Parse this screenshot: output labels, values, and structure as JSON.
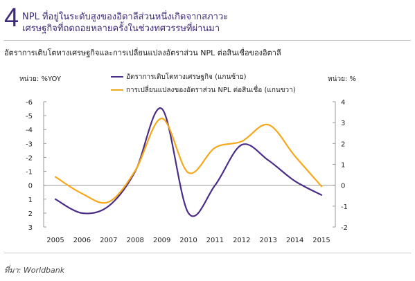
{
  "header": {
    "number": "4",
    "line1": "NPL ที่อยู่ในระดับสูงของอิตาลีส่วนหนึ่งเกิดจากสภาวะ",
    "line2": "เศรษฐกิจที่ถดถอยหลายครั้งในช่วงทศวรรษที่ผ่านมา"
  },
  "subtitle": "อัตราการเติบโตทางเศรษฐกิจและการเปลี่ยนแปลงอัตราส่วน NPL ต่อสินเชื่อของอิตาลี",
  "source": "ที่มา: Worldbank",
  "colors": {
    "series1": "#4b2c86",
    "series2": "#f5a81c",
    "axis": "#999999"
  },
  "chart_data": {
    "type": "line",
    "title": "อัตราการเติบโตทางเศรษฐกิจและการเปลี่ยนแปลงอัตราส่วน NPL ต่อสินเชื่อของอิตาลี",
    "x": [
      "2005",
      "2006",
      "2007",
      "2008",
      "2009",
      "2010",
      "2011",
      "2012",
      "2013",
      "2014",
      "2015"
    ],
    "left_unit": "หน่วย: %YOY",
    "right_unit": "หน่วย: %",
    "left_axis": {
      "ylim": [
        3,
        -6
      ],
      "ticks": [
        "-6",
        "-5",
        "-4",
        "-3",
        "-2",
        "-1",
        "0",
        "1",
        "2",
        "3"
      ],
      "inverted": true
    },
    "right_axis": {
      "ylim": [
        -2,
        4
      ],
      "ticks": [
        "4",
        "3",
        "2",
        "1",
        "0",
        "-1",
        "-2"
      ]
    },
    "legend_position": "top",
    "grid": false,
    "series": [
      {
        "name": "อัตราการเติบโตทางเศรษฐกิจ (แกนซ้าย)",
        "axis": "left",
        "values": [
          1.0,
          2.0,
          1.5,
          -1.0,
          -5.5,
          2.0,
          0.0,
          -2.9,
          -1.8,
          -0.3,
          0.7
        ]
      },
      {
        "name": "การเปลี่ยนแปลงของอัตราส่วน NPL  ต่อสินเชื่อ (แกนขวา)",
        "axis": "right",
        "values": [
          0.4,
          -0.4,
          -0.8,
          0.7,
          3.2,
          0.6,
          1.8,
          2.1,
          2.9,
          1.4,
          -0.05
        ]
      }
    ]
  }
}
